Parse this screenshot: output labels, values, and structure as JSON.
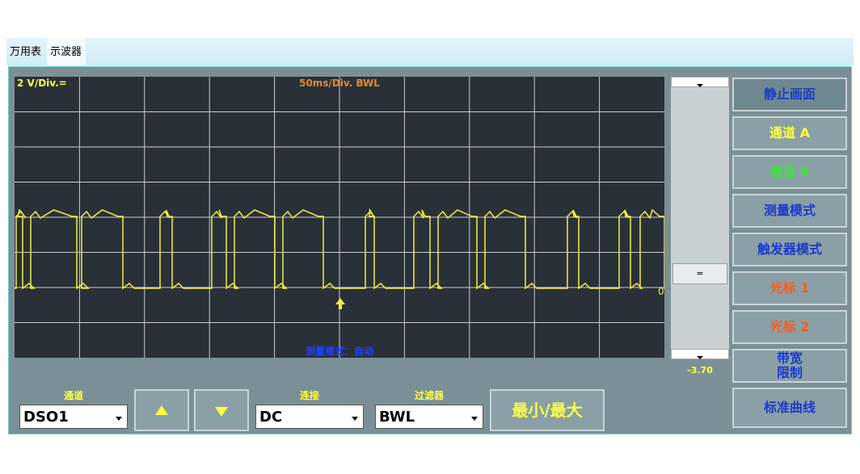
{
  "tabs": [
    "万用表",
    "示波器"
  ],
  "scope": {
    "volts_per_div": "2 V/Div.=",
    "time_per_div": "50ms/Div. BWL",
    "measure_mode": "测量模式：自动",
    "zero_marker": "0",
    "offset_value": "-3.70",
    "scroll_thumb": "="
  },
  "buttons": [
    "静止画面",
    "通道 A",
    "通道 B",
    "测量模式",
    "触发器模式",
    "光标 1",
    "光标 2",
    [
      "带宽",
      "限制"
    ],
    "标准曲线"
  ],
  "controls": {
    "channel": {
      "label": "通道",
      "value": "DSO1"
    },
    "coupling": {
      "label": "连接",
      "value": "DC"
    },
    "filter": {
      "label": "过滤器",
      "value": "BWL"
    },
    "minmax": "最小/最大"
  }
}
